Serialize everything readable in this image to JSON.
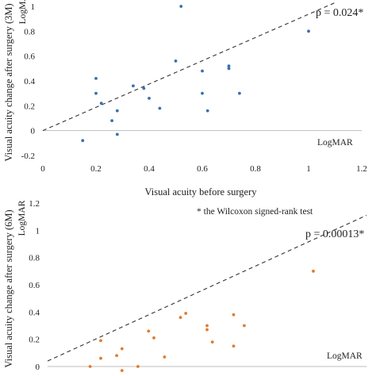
{
  "chart_data": [
    {
      "type": "scatter",
      "xlabel": "Visual acuity before surgery",
      "ylabel": "Visual acuity change after surgery (3M)",
      "unit_label": "LogMAR",
      "corner_label": "LogMAR",
      "annotation": "p = 0.024*",
      "note": "",
      "xlim": [
        0,
        1.2
      ],
      "ylim": [
        -0.2,
        1.0
      ],
      "x_ticks": [
        "0",
        "0.2",
        "0.4",
        "0.6",
        "0.8",
        "1",
        "1.2"
      ],
      "y_ticks": [
        "-0.2",
        "0",
        "0.2",
        "0.4",
        "0.6",
        "0.8",
        "1"
      ],
      "trend_line": {
        "style": "dashed",
        "x": [
          0,
          1.1
        ],
        "y": [
          0.0,
          1.03
        ]
      },
      "marker_color": "#3a6fb0",
      "grid": false,
      "points": [
        {
          "x": 0.15,
          "y": -0.08
        },
        {
          "x": 0.2,
          "y": 0.42
        },
        {
          "x": 0.2,
          "y": 0.3
        },
        {
          "x": 0.22,
          "y": 0.22
        },
        {
          "x": 0.26,
          "y": 0.08
        },
        {
          "x": 0.28,
          "y": 0.16
        },
        {
          "x": 0.28,
          "y": -0.03
        },
        {
          "x": 0.34,
          "y": 0.36
        },
        {
          "x": 0.38,
          "y": 0.34
        },
        {
          "x": 0.4,
          "y": 0.26
        },
        {
          "x": 0.44,
          "y": 0.18
        },
        {
          "x": 0.5,
          "y": 0.56
        },
        {
          "x": 0.52,
          "y": 1.0
        },
        {
          "x": 0.6,
          "y": 0.48
        },
        {
          "x": 0.6,
          "y": 0.3
        },
        {
          "x": 0.62,
          "y": 0.16
        },
        {
          "x": 0.7,
          "y": 0.52
        },
        {
          "x": 0.7,
          "y": 0.5
        },
        {
          "x": 0.74,
          "y": 0.3
        },
        {
          "x": 1.0,
          "y": 0.8
        }
      ]
    },
    {
      "type": "scatter",
      "xlabel": "",
      "ylabel": "Visual acuity change after surgery (6M)",
      "unit_label": "LogMAR",
      "corner_label": "LogMAR",
      "annotation": "p = 0.00013*",
      "note": "* the Wilcoxon signed-rank test",
      "xlim": [
        0,
        1.2
      ],
      "ylim": [
        0,
        1.2
      ],
      "x_ticks": [],
      "y_ticks": [
        "0",
        "0.2",
        "0.4",
        "0.6",
        "0.8",
        "1",
        "1.2"
      ],
      "trend_line": {
        "style": "dashed",
        "x": [
          0,
          1.2
        ],
        "y": [
          0.04,
          1.11
        ]
      },
      "marker_color": "#e07b2e",
      "grid": false,
      "points": [
        {
          "x": 0.16,
          "y": 0.0
        },
        {
          "x": 0.2,
          "y": 0.19
        },
        {
          "x": 0.2,
          "y": 0.06
        },
        {
          "x": 0.26,
          "y": 0.08
        },
        {
          "x": 0.28,
          "y": 0.13
        },
        {
          "x": 0.28,
          "y": -0.03
        },
        {
          "x": 0.34,
          "y": 0.0
        },
        {
          "x": 0.38,
          "y": 0.26
        },
        {
          "x": 0.4,
          "y": 0.21
        },
        {
          "x": 0.44,
          "y": 0.07
        },
        {
          "x": 0.5,
          "y": 0.36
        },
        {
          "x": 0.52,
          "y": 0.39
        },
        {
          "x": 0.6,
          "y": 0.3
        },
        {
          "x": 0.6,
          "y": 0.27
        },
        {
          "x": 0.62,
          "y": 0.18
        },
        {
          "x": 0.7,
          "y": 0.38
        },
        {
          "x": 0.7,
          "y": 0.15
        },
        {
          "x": 0.74,
          "y": 0.3
        },
        {
          "x": 1.0,
          "y": 0.7
        }
      ]
    }
  ]
}
